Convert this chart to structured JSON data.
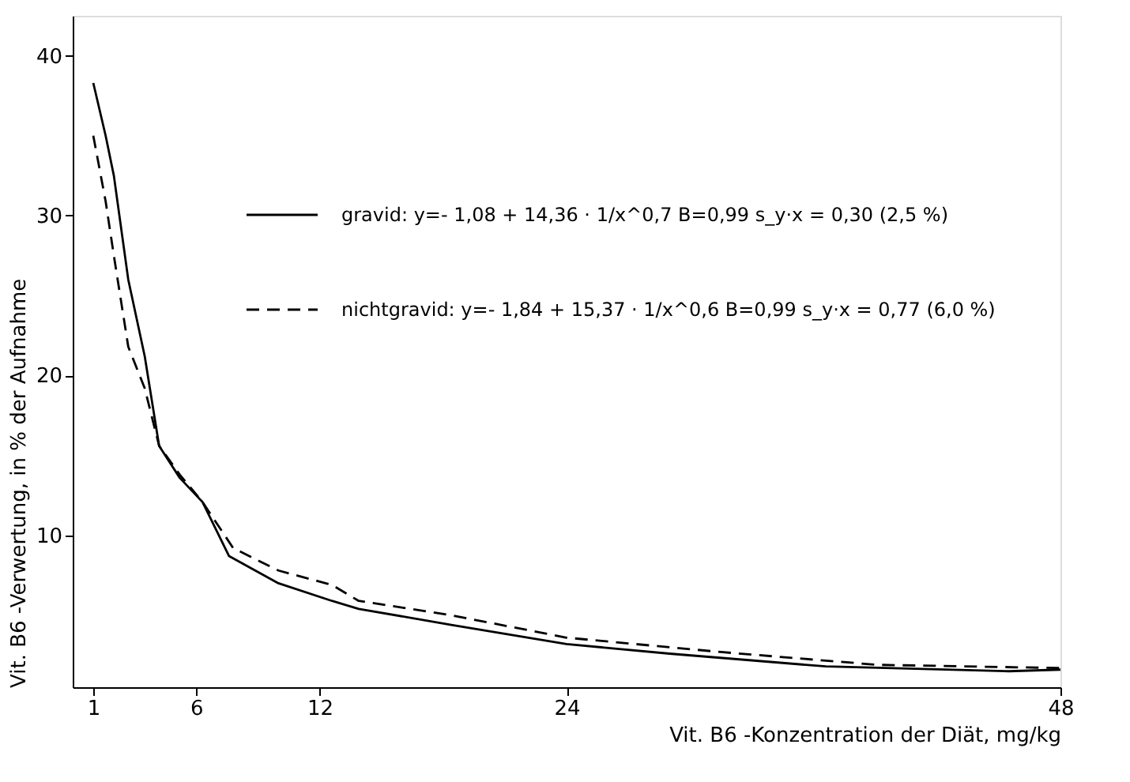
{
  "chart_data": {
    "type": "line",
    "xlabel": "Vit. B6 -Konzentration der Diät, mg/kg",
    "ylabel": "Vit. B6 -Verwertung, in % der Aufnahme",
    "xlim": [
      0,
      48
    ],
    "xticks": [
      1,
      6,
      12,
      24,
      48
    ],
    "ylim": [
      0.5,
      42.5
    ],
    "yticks": [
      10,
      20,
      30,
      40
    ],
    "grid": false,
    "legend": "top right",
    "marker": "none",
    "series": [
      {
        "name": "gravid: y=- 1,08 + 14,36 · 1/x^0,7   B=0,99   s_y·x = 0,30 (2,5 %)",
        "color": "#000000",
        "line_style": "solid",
        "x": [
          1,
          1.6,
          2.0,
          2.7,
          3.5,
          4.2,
          5.2,
          6.3,
          7.6,
          10,
          12.6,
          13.9,
          18.4,
          24,
          29,
          36.6,
          45.5,
          48
        ],
        "values": [
          38.3,
          35.0,
          32.5,
          26.0,
          21.2,
          15.6,
          13.6,
          12.1,
          8.7,
          7.0,
          5.9,
          5.4,
          4.4,
          3.2,
          2.6,
          1.8,
          1.5,
          1.6
        ]
      },
      {
        "name": "nichtgravid: y=- 1,84 + 15,37 · 1/x^0,6   B=0,99   s_y·x = 0,77 (6,0 %)",
        "color": "#000000",
        "line_style": "dashed",
        "x": [
          1,
          1.6,
          2.0,
          2.7,
          3.5,
          4.2,
          5.2,
          6.3,
          7.8,
          10,
          12.6,
          13.9,
          18.4,
          24,
          31.5,
          39.1,
          48
        ],
        "values": [
          35.0,
          30.9,
          27.5,
          21.8,
          19.2,
          15.6,
          13.8,
          12.1,
          9.2,
          7.8,
          6.9,
          5.9,
          5.0,
          3.6,
          2.7,
          1.9,
          1.7
        ]
      }
    ]
  }
}
